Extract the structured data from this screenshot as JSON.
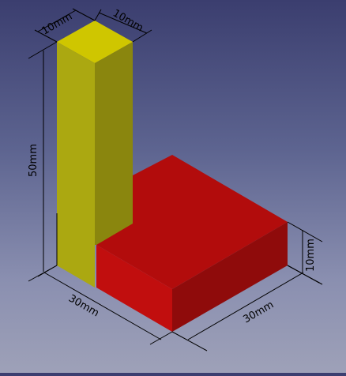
{
  "scene": {
    "dimensions": {
      "column_width_top": "10mm",
      "column_depth_top": "10mm",
      "column_height": "50mm",
      "base_width": "30mm",
      "base_depth": "30mm",
      "base_height": "10mm"
    },
    "colors": {
      "column_top": "#cfc600",
      "column_left": "#aba811",
      "column_right": "#8a860e",
      "base_top": "#b20c0c",
      "base_left": "#c10e0e",
      "base_right": "#8f0b0b",
      "dimension_line": "#000000"
    }
  }
}
